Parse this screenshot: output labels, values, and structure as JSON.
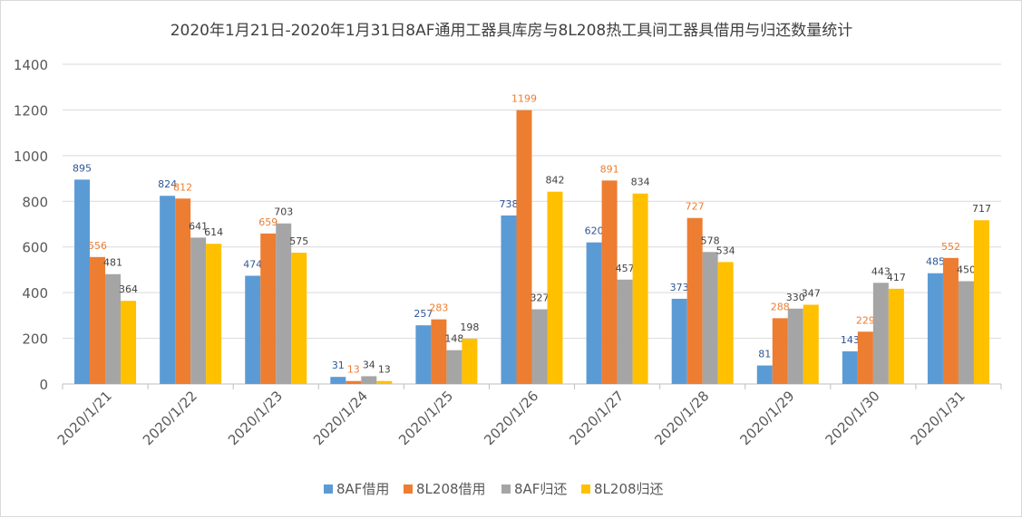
{
  "chart_data": {
    "type": "bar",
    "title": "2020年1月21日-2020年1月31日8AF通用工器具库房与8L208热工具间工器具借用与归还数量统计",
    "xlabel": "",
    "ylabel": "",
    "ylim": [
      0,
      1400
    ],
    "yticks": [
      0,
      200,
      400,
      600,
      800,
      1000,
      1200,
      1400
    ],
    "grid": true,
    "legend_position": "bottom",
    "categories": [
      "2020/1/21",
      "2020/1/22",
      "2020/1/23",
      "2020/1/24",
      "2020/1/25",
      "2020/1/26",
      "2020/1/27",
      "2020/1/28",
      "2020/1/29",
      "2020/1/30",
      "2020/1/31"
    ],
    "series": [
      {
        "name": "8AF借用",
        "color": "#5b9bd5",
        "label_color": "#2f5597",
        "values": [
          895,
          824,
          474,
          31,
          257,
          738,
          620,
          373,
          81,
          143,
          485
        ]
      },
      {
        "name": "8L208借用",
        "color": "#ed7d31",
        "label_color": "#ed7d31",
        "values": [
          556,
          812,
          659,
          13,
          283,
          1199,
          891,
          727,
          288,
          229,
          552
        ]
      },
      {
        "name": "8AF归还",
        "color": "#a5a5a5",
        "label_color": "#404040",
        "values": [
          481,
          641,
          703,
          34,
          148,
          327,
          457,
          578,
          330,
          443,
          450
        ]
      },
      {
        "name": "8L208归还",
        "color": "#ffc000",
        "label_color": "#404040",
        "values": [
          364,
          614,
          575,
          13,
          198,
          842,
          834,
          534,
          347,
          417,
          717
        ]
      }
    ]
  }
}
